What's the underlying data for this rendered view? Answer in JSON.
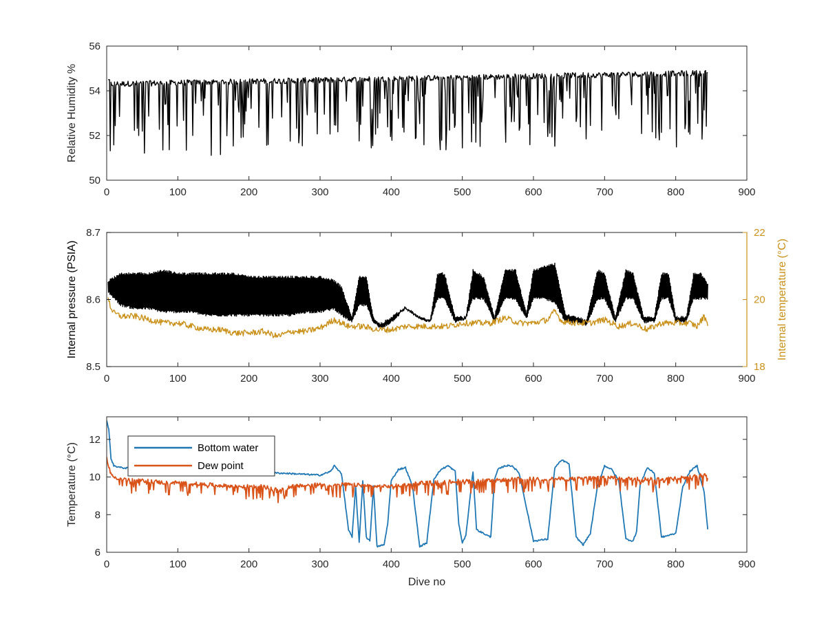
{
  "colors": {
    "axis": "#262626",
    "humidity": "#000000",
    "pressure": "#000000",
    "internal_temp": "#c9911a",
    "bottom_water": "#1f77b4",
    "dew_point": "#d95319"
  },
  "chart_data": [
    {
      "type": "line",
      "xlabel": "",
      "ylabel": "Relative Humidity %",
      "xlim": [
        0,
        900
      ],
      "ylim": [
        50,
        56
      ],
      "xticks": [
        0,
        100,
        200,
        300,
        400,
        500,
        600,
        700,
        800,
        900
      ],
      "yticks": [
        50,
        52,
        54,
        56
      ],
      "series": [
        {
          "name": "",
          "color": "#000000",
          "x": [
            2,
            5,
            10,
            12,
            15,
            20,
            25,
            30,
            35,
            40,
            45,
            50,
            55,
            60,
            70,
            80,
            90,
            100,
            120,
            140,
            150,
            160,
            180,
            200,
            210,
            230,
            250,
            260,
            280,
            300,
            320,
            330,
            340,
            350,
            360,
            370,
            380,
            390,
            400,
            410,
            420,
            430,
            440,
            450,
            460,
            480,
            500,
            520,
            540,
            560,
            580,
            600,
            620,
            640,
            660,
            680,
            700,
            720,
            740,
            760,
            780,
            800,
            820,
            830,
            835,
            840,
            845
          ],
          "y": [
            54.5,
            54.3,
            53.8,
            51.5,
            54.3,
            54.3,
            51.4,
            54.2,
            51.3,
            54.2,
            51.4,
            54.2,
            51.4,
            54.3,
            53.0,
            54.3,
            52.5,
            54.3,
            52.0,
            54.4,
            51.5,
            54.4,
            52.3,
            54.4,
            52.0,
            54.4,
            51.5,
            54.4,
            52.2,
            54.4,
            51.6,
            54.4,
            52.3,
            54.1,
            51.5,
            54.2,
            51.2,
            53.9,
            51.5,
            54.3,
            54.5,
            54.4,
            52.8,
            54.3,
            52.4,
            54.4,
            52.3,
            54.4,
            52.0,
            54.7,
            52.7,
            54.8,
            52.5,
            54.9,
            52.0,
            54.6,
            52.3,
            54.8,
            52.1,
            54.8,
            52.5,
            54.9,
            52.0,
            54.9,
            51.7,
            55.1,
            54.4
          ]
        }
      ]
    },
    {
      "type": "line",
      "xlabel": "",
      "ylabel": "Internal pressure (PSIA)",
      "ylabel_right": "Internal temperature (°C)",
      "xlim": [
        0,
        900
      ],
      "ylim": [
        8.5,
        8.7
      ],
      "ylim_right": [
        18,
        22
      ],
      "xticks": [
        0,
        100,
        200,
        300,
        400,
        500,
        600,
        700,
        800,
        900
      ],
      "yticks": [
        8.5,
        8.6,
        8.7
      ],
      "yticks_right": [
        18,
        20,
        22
      ],
      "series": [
        {
          "name": "",
          "axis": "left",
          "color": "#000000",
          "band_x": [
            2,
            20,
            40,
            60,
            80,
            100,
            120,
            140,
            160,
            180,
            200,
            220,
            240,
            260,
            280,
            300,
            320,
            330,
            345,
            355,
            365,
            375,
            385,
            400,
            420,
            440,
            455,
            465,
            475,
            490,
            505,
            515,
            530,
            545,
            560,
            575,
            590,
            600,
            615,
            630,
            645,
            660,
            675,
            690,
            700,
            715,
            730,
            740,
            755,
            770,
            780,
            790,
            800,
            815,
            825,
            835,
            845
          ],
          "band_low": [
            8.61,
            8.59,
            8.585,
            8.585,
            8.58,
            8.58,
            8.58,
            8.575,
            8.575,
            8.575,
            8.575,
            8.575,
            8.575,
            8.575,
            8.58,
            8.58,
            8.585,
            8.575,
            8.565,
            8.59,
            8.59,
            8.565,
            8.555,
            8.565,
            8.585,
            8.57,
            8.565,
            8.6,
            8.6,
            8.565,
            8.57,
            8.6,
            8.6,
            8.565,
            8.6,
            8.6,
            8.57,
            8.6,
            8.6,
            8.595,
            8.565,
            8.565,
            8.56,
            8.6,
            8.6,
            8.565,
            8.6,
            8.6,
            8.565,
            8.565,
            8.6,
            8.6,
            8.565,
            8.565,
            8.6,
            8.6,
            8.6
          ],
          "band_high": [
            8.63,
            8.64,
            8.64,
            8.64,
            8.645,
            8.64,
            8.64,
            8.64,
            8.64,
            8.64,
            8.635,
            8.635,
            8.635,
            8.635,
            8.635,
            8.635,
            8.63,
            8.62,
            8.575,
            8.635,
            8.635,
            8.575,
            8.565,
            8.575,
            8.59,
            8.575,
            8.57,
            8.64,
            8.64,
            8.575,
            8.575,
            8.645,
            8.635,
            8.575,
            8.645,
            8.645,
            8.58,
            8.645,
            8.65,
            8.655,
            8.58,
            8.575,
            8.57,
            8.645,
            8.64,
            8.575,
            8.645,
            8.64,
            8.575,
            8.575,
            8.64,
            8.64,
            8.575,
            8.575,
            8.64,
            8.64,
            8.625
          ]
        },
        {
          "name": "",
          "axis": "right",
          "color": "#c9911a",
          "x": [
            2,
            5,
            10,
            20,
            40,
            60,
            80,
            100,
            120,
            140,
            160,
            180,
            200,
            220,
            240,
            260,
            280,
            300,
            320,
            340,
            360,
            380,
            400,
            420,
            440,
            460,
            480,
            500,
            520,
            540,
            560,
            580,
            600,
            620,
            630,
            640,
            660,
            680,
            700,
            720,
            740,
            760,
            780,
            800,
            820,
            830,
            840,
            845
          ],
          "y": [
            20.1,
            19.8,
            19.6,
            19.5,
            19.5,
            19.4,
            19.3,
            19.3,
            19.2,
            19.1,
            19.1,
            19.0,
            19.0,
            19.05,
            18.9,
            19.05,
            19.05,
            19.15,
            19.4,
            19.2,
            19.2,
            19.1,
            19.1,
            19.2,
            19.2,
            19.2,
            19.2,
            19.3,
            19.3,
            19.3,
            19.45,
            19.3,
            19.3,
            19.4,
            19.65,
            19.35,
            19.3,
            19.3,
            19.4,
            19.2,
            19.3,
            19.1,
            19.3,
            19.3,
            19.3,
            19.2,
            19.5,
            19.3
          ]
        }
      ]
    },
    {
      "type": "line",
      "xlabel": "Dive no",
      "ylabel": "Temperature (°C)",
      "xlim": [
        0,
        900
      ],
      "ylim": [
        6,
        13.2
      ],
      "xticks": [
        0,
        100,
        200,
        300,
        400,
        500,
        600,
        700,
        800,
        900
      ],
      "yticks": [
        6,
        8,
        10,
        12
      ],
      "legend": "top-left",
      "series": [
        {
          "name": "Bottom water",
          "color": "#1f77b4",
          "x": [
            0,
            3,
            6,
            10,
            20,
            50,
            100,
            150,
            200,
            250,
            300,
            315,
            320,
            330,
            340,
            345,
            350,
            355,
            360,
            365,
            370,
            375,
            380,
            390,
            395,
            400,
            410,
            420,
            430,
            440,
            450,
            460,
            470,
            480,
            490,
            495,
            500,
            505,
            515,
            520,
            530,
            540,
            545,
            550,
            560,
            570,
            580,
            600,
            620,
            630,
            640,
            650,
            660,
            670,
            680,
            690,
            700,
            710,
            720,
            730,
            740,
            745,
            750,
            760,
            770,
            780,
            790,
            800,
            810,
            820,
            830,
            840,
            845
          ],
          "y": [
            13.0,
            12.5,
            11.0,
            10.6,
            10.5,
            10.4,
            10.35,
            10.3,
            10.25,
            10.2,
            10.1,
            10.3,
            10.6,
            10.2,
            7.2,
            6.8,
            9.5,
            6.5,
            9.8,
            6.8,
            6.6,
            9.5,
            6.3,
            6.4,
            7.5,
            9.8,
            10.4,
            10.5,
            9.5,
            6.3,
            6.5,
            9.9,
            10.4,
            10.6,
            10.3,
            7.5,
            6.5,
            6.9,
            10.3,
            7.2,
            7.0,
            6.8,
            9.8,
            10.4,
            10.6,
            10.6,
            10.2,
            6.6,
            6.7,
            10.5,
            10.9,
            10.7,
            6.8,
            6.4,
            7.0,
            9.5,
            10.6,
            10.4,
            9.8,
            6.7,
            6.6,
            7.1,
            9.6,
            10.5,
            10.2,
            6.8,
            6.9,
            7.0,
            9.5,
            10.3,
            10.6,
            9.2,
            7.2
          ]
        },
        {
          "name": "Dew point",
          "color": "#d95319",
          "x": [
            0,
            3,
            6,
            10,
            20,
            40,
            60,
            80,
            100,
            140,
            180,
            220,
            240,
            260,
            300,
            340,
            380,
            400,
            420,
            440,
            460,
            500,
            540,
            580,
            620,
            660,
            700,
            740,
            780,
            820,
            840,
            845
          ],
          "y": [
            11.0,
            10.5,
            10.2,
            10.0,
            9.9,
            9.8,
            9.8,
            9.7,
            9.7,
            9.6,
            9.5,
            9.5,
            9.3,
            9.5,
            9.6,
            9.6,
            9.5,
            9.5,
            9.6,
            9.7,
            9.7,
            9.8,
            9.8,
            9.9,
            9.9,
            9.9,
            10.0,
            9.9,
            9.9,
            10.0,
            10.1,
            10.0
          ]
        }
      ]
    }
  ]
}
